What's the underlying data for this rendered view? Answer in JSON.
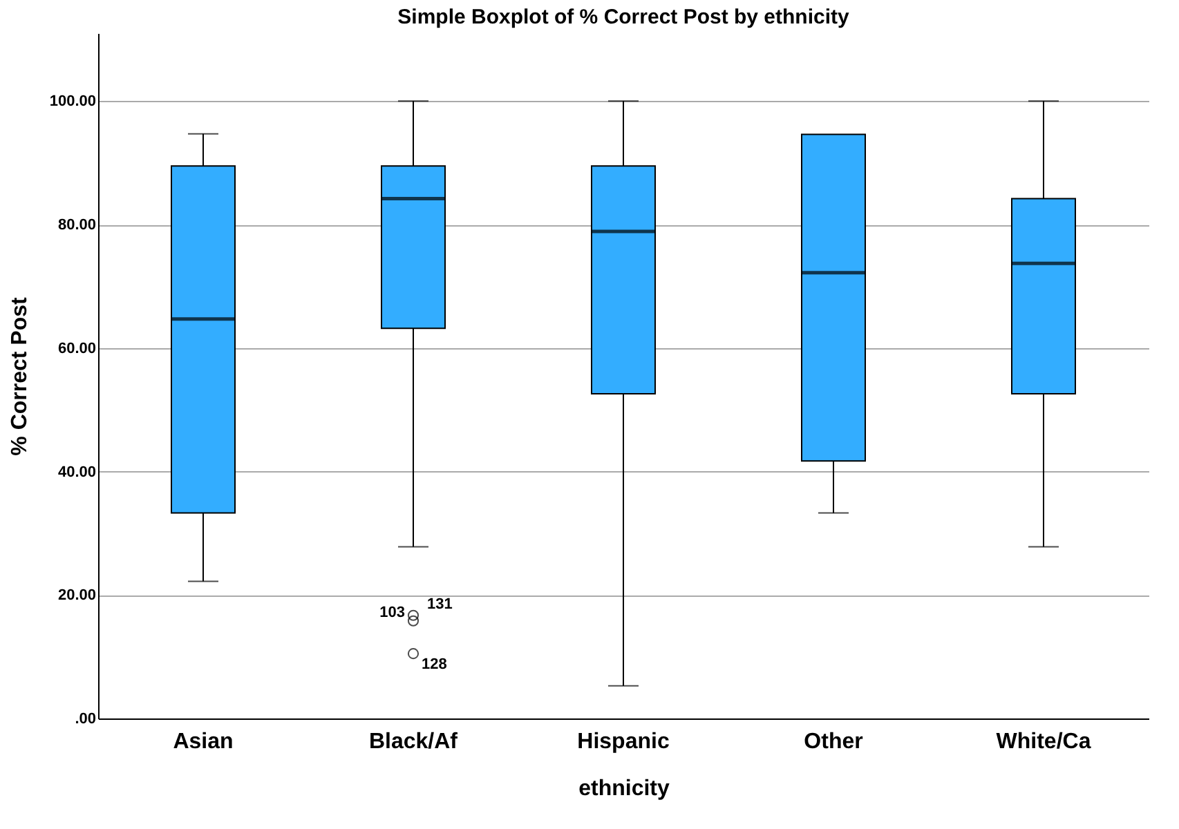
{
  "chart_data": {
    "type": "box",
    "title": "Simple Boxplot of % Correct Post by ethnicity",
    "xlabel": "ethnicity",
    "ylabel": "% Correct Post",
    "categories": [
      "Asian",
      "Black/Af",
      "Hispanic",
      "Other",
      "White/Ca"
    ],
    "color": "#33adff",
    "boxes": [
      {
        "low": 22.2,
        "q1": 33.3,
        "median": 64.7,
        "q3": 89.5,
        "high": 94.7
      },
      {
        "low": 27.8,
        "q1": 63.2,
        "median": 84.2,
        "q3": 89.5,
        "high": 100,
        "outliers": [
          16.7,
          15.8,
          10.5
        ]
      },
      {
        "low": 5.3,
        "q1": 52.6,
        "median": 78.9,
        "q3": 89.5,
        "high": 100
      },
      {
        "low": 33.3,
        "q1": 41.7,
        "median": 72.2,
        "q3": 94.6,
        "high": 94.6
      },
      {
        "low": 27.8,
        "q1": 52.6,
        "median": 73.7,
        "q3": 84.2,
        "high": 100
      }
    ],
    "ylim": [
      0,
      111
    ],
    "yticks": [
      {
        "value": 0,
        "label": ".00"
      },
      {
        "value": 20,
        "label": "20.00"
      },
      {
        "value": 40,
        "label": "40.00"
      },
      {
        "value": 60,
        "label": "60.00"
      },
      {
        "value": 80,
        "label": "80.00"
      },
      {
        "value": 100,
        "label": "100.00"
      }
    ],
    "grid": "y",
    "annotations": [
      "131",
      "103",
      "128"
    ]
  }
}
